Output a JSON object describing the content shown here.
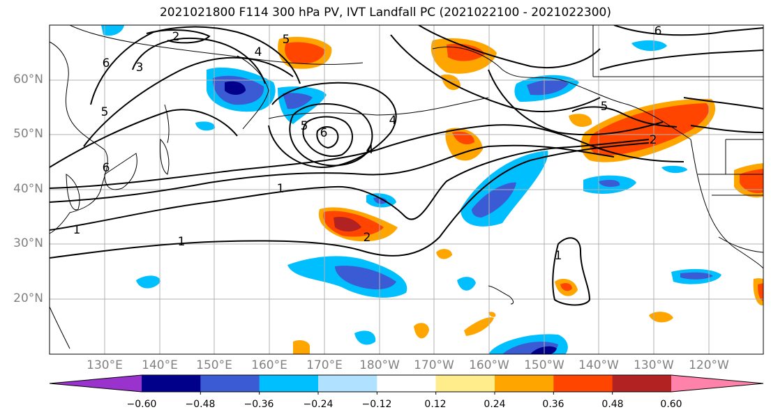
{
  "title": "2021021800 F114 300 hPa PV, IVT Landfall PC (2021022100 - 2021022300)",
  "map": {
    "lat_labels": [
      "60°N",
      "50°N",
      "40°N",
      "30°N",
      "20°N"
    ],
    "lon_labels": [
      "130°E",
      "140°E",
      "150°E",
      "160°E",
      "170°E",
      "180°W",
      "170°W",
      "160°W",
      "150°W",
      "140°W",
      "130°W",
      "120°W"
    ]
  },
  "contour_labels": [
    "2",
    "5",
    "4",
    "6",
    "3",
    "5",
    "6",
    "4",
    "6",
    "5",
    "4",
    "5",
    "2",
    "1",
    "1",
    "1",
    "2",
    "1",
    "6"
  ],
  "colorbar": {
    "ticks": [
      "−0.60",
      "−0.48",
      "−0.36",
      "−0.24",
      "−0.12",
      "0.12",
      "0.24",
      "0.36",
      "0.48",
      "0.60"
    ],
    "colors": [
      "#9a32cd",
      "#00008b",
      "#3a5bd4",
      "#00bfff",
      "#b0e2ff",
      "#ffffff",
      "#ffec8b",
      "#ffa500",
      "#ff4500",
      "#b22222",
      "#ff82ab"
    ]
  }
}
